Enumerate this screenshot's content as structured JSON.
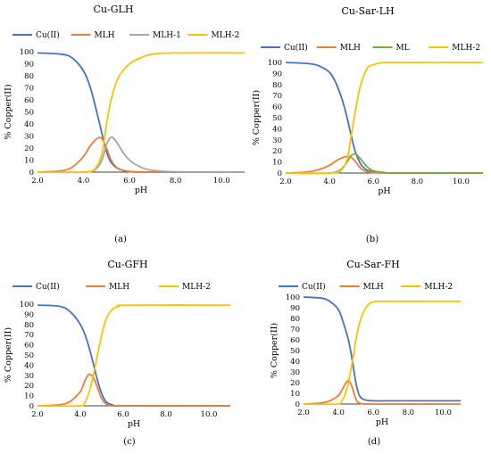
{
  "colors": {
    "cu": "#4472C4",
    "mlh": "#ED7D31",
    "gray": "#A5A5A5",
    "ml": "#70AD47",
    "mlh2": "#FFC000"
  },
  "chart_data": [
    {
      "type": "line",
      "title": "Cu-GLH",
      "caption": "(a)",
      "xlabel": "pH",
      "ylabel": "% Copper(II)",
      "xlim": [
        2.0,
        11.0
      ],
      "ylim": [
        0,
        100
      ],
      "xticks": [
        "2.0",
        "4.0",
        "6.0",
        "8.0",
        "10.0"
      ],
      "yticks": [
        "0",
        "10",
        "20",
        "30",
        "40",
        "50",
        "60",
        "70",
        "80",
        "90",
        "100"
      ],
      "legend_position": "top",
      "series": [
        {
          "name": "Cu(II)",
          "color": "#4472C4",
          "x": [
            2.0,
            3.0,
            3.5,
            4.0,
            4.3,
            4.6,
            4.8,
            5.0,
            5.2,
            5.5,
            6.0,
            7.0,
            11.0
          ],
          "y": [
            99,
            98,
            95,
            84,
            70,
            48,
            32,
            17,
            8,
            3,
            0.5,
            0,
            0
          ]
        },
        {
          "name": "MLH",
          "color": "#ED7D31",
          "x": [
            2.0,
            3.0,
            3.5,
            4.0,
            4.3,
            4.6,
            4.8,
            5.0,
            5.2,
            5.5,
            6.0,
            7.0,
            11.0
          ],
          "y": [
            0,
            1,
            4,
            13,
            22,
            28,
            28,
            20,
            10,
            3,
            0.5,
            0,
            0
          ]
        },
        {
          "name": "MLH-1",
          "color": "#A5A5A5",
          "x": [
            2.0,
            4.0,
            4.5,
            4.8,
            5.0,
            5.2,
            5.4,
            5.7,
            6.0,
            6.5,
            7.0,
            8.0,
            11.0
          ],
          "y": [
            0,
            0,
            2,
            10,
            23,
            29,
            26,
            17,
            10,
            4,
            1.5,
            0.3,
            0
          ]
        },
        {
          "name": "MLH-2",
          "color": "#FFC000",
          "x": [
            2.0,
            4.0,
            4.5,
            4.8,
            5.0,
            5.2,
            5.5,
            6.0,
            6.5,
            7.0,
            8.0,
            11.0
          ],
          "y": [
            0,
            0,
            3,
            15,
            40,
            60,
            78,
            90,
            95,
            98,
            99,
            99
          ]
        }
      ]
    },
    {
      "type": "line",
      "title": "Cu-Sar-LH",
      "caption": "(b)",
      "xlabel": "pH",
      "ylabel": "% Copper(II)",
      "xlim": [
        2.0,
        11.0
      ],
      "ylim": [
        0,
        100
      ],
      "xticks": [
        "2.0",
        "4.0",
        "6.0",
        "8.0",
        "10.0"
      ],
      "yticks": [
        "0",
        "10",
        "20",
        "30",
        "40",
        "50",
        "60",
        "70",
        "80",
        "90",
        "100"
      ],
      "legend_position": "top",
      "series": [
        {
          "name": "Cu(II)",
          "color": "#4472C4",
          "x": [
            2.0,
            3.0,
            3.5,
            4.0,
            4.3,
            4.6,
            4.8,
            5.0,
            5.2,
            5.5,
            6.0,
            7.0,
            11.0
          ],
          "y": [
            100,
            99,
            97,
            91,
            81,
            65,
            50,
            33,
            18,
            6,
            1,
            0,
            0
          ]
        },
        {
          "name": "MLH",
          "color": "#ED7D31",
          "x": [
            2.0,
            3.0,
            3.5,
            4.0,
            4.3,
            4.6,
            4.8,
            5.0,
            5.2,
            5.5,
            6.0,
            7.0,
            11.0
          ],
          "y": [
            0,
            1,
            3,
            7,
            11,
            14,
            15,
            14,
            10,
            3,
            0.5,
            0,
            0
          ]
        },
        {
          "name": "ML",
          "color": "#70AD47",
          "x": [
            2.0,
            4.0,
            4.5,
            4.8,
            5.0,
            5.2,
            5.4,
            5.7,
            6.0,
            6.5,
            7.0,
            11.0
          ],
          "y": [
            0,
            0,
            3,
            10,
            16,
            17,
            13,
            6,
            2,
            0.5,
            0,
            0
          ]
        },
        {
          "name": "MLH-2",
          "color": "#FFC000",
          "x": [
            2.0,
            4.0,
            4.5,
            4.8,
            5.0,
            5.2,
            5.4,
            5.7,
            6.0,
            6.5,
            7.0,
            11.0
          ],
          "y": [
            0,
            0,
            2,
            12,
            35,
            58,
            78,
            94,
            98,
            100,
            100,
            100
          ]
        }
      ]
    },
    {
      "type": "line",
      "title": "Cu-GFH",
      "caption": "(c)",
      "xlabel": "pH",
      "ylabel": "% Copper(II)",
      "xlim": [
        2.0,
        11.0
      ],
      "ylim": [
        0,
        100
      ],
      "xticks": [
        "2.0",
        "4.0",
        "6.0",
        "8.0",
        "10.0"
      ],
      "yticks": [
        "0",
        "10",
        "20",
        "30",
        "40",
        "50",
        "60",
        "70",
        "80",
        "90",
        "100"
      ],
      "legend_position": "top",
      "series": [
        {
          "name": "Cu(II)",
          "color": "#4472C4",
          "x": [
            2.0,
            3.0,
            3.5,
            4.0,
            4.3,
            4.6,
            4.8,
            5.0,
            5.2,
            5.5,
            6.0,
            11.0
          ],
          "y": [
            99,
            98,
            93,
            80,
            65,
            42,
            25,
            12,
            4,
            1,
            0,
            0
          ]
        },
        {
          "name": "MLH",
          "color": "#ED7D31",
          "x": [
            2.0,
            3.0,
            3.5,
            4.0,
            4.2,
            4.4,
            4.6,
            4.8,
            5.0,
            5.3,
            6.0,
            11.0
          ],
          "y": [
            0,
            1,
            4,
            14,
            24,
            31,
            28,
            18,
            7,
            1,
            0,
            0
          ]
        },
        {
          "name": "MLH-2",
          "color": "#FFC000",
          "x": [
            2.0,
            3.9,
            4.2,
            4.5,
            4.8,
            5.0,
            5.2,
            5.5,
            5.8,
            6.2,
            11.0
          ],
          "y": [
            0,
            0,
            3,
            20,
            50,
            70,
            85,
            95,
            98,
            99,
            99
          ]
        }
      ]
    },
    {
      "type": "line",
      "title": "Cu-Sar-FH",
      "caption": "(d)",
      "xlabel": "pH",
      "ylabel": "% Copper(II)",
      "xlim": [
        2.0,
        11.0
      ],
      "ylim": [
        0,
        100
      ],
      "xticks": [
        "2.0",
        "4.0",
        "6.0",
        "8.0",
        "10.0"
      ],
      "yticks": [
        "0",
        "10",
        "20",
        "30",
        "40",
        "50",
        "60",
        "70",
        "80",
        "90",
        "100"
      ],
      "legend_position": "top",
      "series": [
        {
          "name": "Cu(II)",
          "color": "#4472C4",
          "x": [
            2.0,
            3.0,
            3.5,
            4.0,
            4.3,
            4.6,
            4.8,
            5.0,
            5.2,
            5.5,
            6.0,
            7.0,
            11.0
          ],
          "y": [
            100,
            99,
            96,
            88,
            75,
            58,
            40,
            20,
            8,
            4,
            3,
            3,
            3
          ]
        },
        {
          "name": "MLH",
          "color": "#ED7D31",
          "x": [
            2.0,
            3.0,
            3.5,
            4.0,
            4.2,
            4.4,
            4.6,
            4.8,
            5.0,
            5.2,
            6.0,
            11.0
          ],
          "y": [
            0,
            1,
            3,
            8,
            13,
            19,
            22,
            15,
            5,
            1,
            0,
            0
          ]
        },
        {
          "name": "MLH-2",
          "color": "#FFC000",
          "x": [
            2.0,
            3.9,
            4.2,
            4.5,
            4.8,
            5.0,
            5.2,
            5.5,
            5.8,
            6.2,
            7.0,
            11.0
          ],
          "y": [
            0,
            0,
            3,
            15,
            40,
            60,
            75,
            88,
            94,
            96,
            96,
            96
          ]
        }
      ]
    }
  ]
}
